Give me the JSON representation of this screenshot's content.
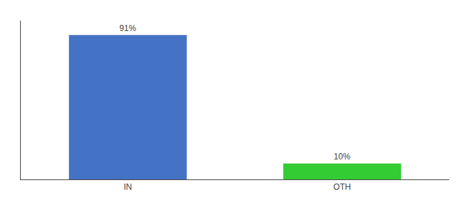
{
  "chart_data": {
    "type": "bar",
    "categories": [
      "IN",
      "OTH"
    ],
    "values": [
      91,
      10
    ],
    "value_labels": [
      "91%",
      "10%"
    ],
    "data_labels": true,
    "colors": [
      "#4472c4",
      "#33cc33"
    ],
    "ylim": [
      0,
      100
    ],
    "tick_labels": "x",
    "grid": false
  }
}
